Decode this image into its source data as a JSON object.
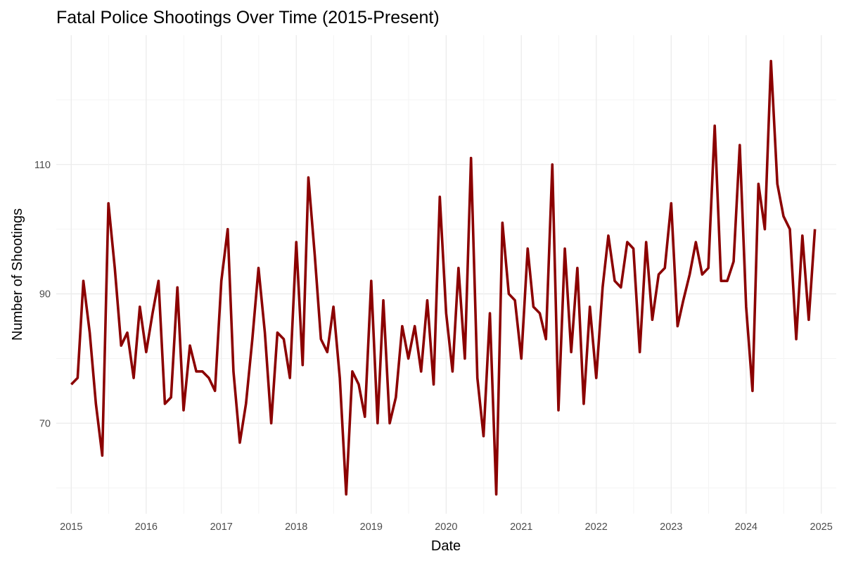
{
  "chart_data": {
    "type": "line",
    "title": "Fatal Police Shootings Over Time (2015-Present)",
    "xlabel": "Date",
    "ylabel": "Number of Shootings",
    "x_tick_labels": [
      "2015",
      "2016",
      "2017",
      "2018",
      "2019",
      "2020",
      "2021",
      "2022",
      "2023",
      "2024",
      "2025"
    ],
    "y_tick_labels": [
      "70",
      "90",
      "110"
    ],
    "ylim": [
      56,
      130
    ],
    "xlim": [
      "2014-10-20",
      "2025-03-15"
    ],
    "grid": true,
    "legend": "none",
    "colors": {
      "series": "#8b0000",
      "grid_major": "#ebebeb",
      "grid_minor": "#f3f3f3"
    },
    "series": [
      {
        "x": [
          "2015-01-01",
          "2015-02-01",
          "2015-03-01",
          "2015-04-01",
          "2015-05-01",
          "2015-06-01",
          "2015-07-01",
          "2015-08-01",
          "2015-09-01",
          "2015-10-01",
          "2015-11-01",
          "2015-12-01",
          "2016-01-01",
          "2016-02-01",
          "2016-03-01",
          "2016-04-01",
          "2016-05-01",
          "2016-06-01",
          "2016-07-01",
          "2016-08-01",
          "2016-09-01",
          "2016-10-01",
          "2016-11-01",
          "2016-12-01",
          "2017-01-01",
          "2017-02-01",
          "2017-03-01",
          "2017-04-01",
          "2017-05-01",
          "2017-06-01",
          "2017-07-01",
          "2017-08-01",
          "2017-09-01",
          "2017-10-01",
          "2017-11-01",
          "2017-12-01",
          "2018-01-01",
          "2018-02-01",
          "2018-03-01",
          "2018-04-01",
          "2018-05-01",
          "2018-06-01",
          "2018-07-01",
          "2018-08-01",
          "2018-09-01",
          "2018-10-01",
          "2018-11-01",
          "2018-12-01",
          "2019-01-01",
          "2019-02-01",
          "2019-03-01",
          "2019-04-01",
          "2019-05-01",
          "2019-06-01",
          "2019-07-01",
          "2019-08-01",
          "2019-09-01",
          "2019-10-01",
          "2019-11-01",
          "2019-12-01",
          "2020-01-01",
          "2020-02-01",
          "2020-03-01",
          "2020-04-01",
          "2020-05-01",
          "2020-06-01",
          "2020-07-01",
          "2020-08-01",
          "2020-09-01",
          "2020-10-01",
          "2020-11-01",
          "2020-12-01",
          "2021-01-01",
          "2021-02-01",
          "2021-03-01",
          "2021-04-01",
          "2021-05-01",
          "2021-06-01",
          "2021-07-01",
          "2021-08-01",
          "2021-09-01",
          "2021-10-01",
          "2021-11-01",
          "2021-12-01",
          "2022-01-01",
          "2022-02-01",
          "2022-03-01",
          "2022-04-01",
          "2022-05-01",
          "2022-06-01",
          "2022-07-01",
          "2022-08-01",
          "2022-09-01",
          "2022-10-01",
          "2022-11-01",
          "2022-12-01",
          "2023-01-01",
          "2023-02-01",
          "2023-03-01",
          "2023-04-01",
          "2023-05-01",
          "2023-06-01",
          "2023-07-01",
          "2023-08-01",
          "2023-09-01",
          "2023-10-01",
          "2023-11-01",
          "2023-12-01",
          "2024-01-01",
          "2024-02-01",
          "2024-03-01",
          "2024-04-01",
          "2024-05-01",
          "2024-06-01",
          "2024-07-01",
          "2024-08-01",
          "2024-09-01",
          "2024-10-01",
          "2024-11-01",
          "2024-12-01"
        ],
        "values": [
          76,
          77,
          92,
          84,
          73,
          65,
          104,
          94,
          82,
          84,
          77,
          88,
          81,
          87,
          92,
          73,
          74,
          91,
          72,
          82,
          78,
          78,
          77,
          75,
          92,
          100,
          78,
          67,
          73,
          83,
          94,
          84,
          70,
          84,
          83,
          77,
          98,
          79,
          108,
          96,
          83,
          81,
          88,
          77,
          59,
          78,
          76,
          71,
          92,
          70,
          89,
          70,
          74,
          85,
          80,
          85,
          78,
          89,
          76,
          105,
          87,
          78,
          94,
          80,
          111,
          77,
          68,
          87,
          59,
          101,
          90,
          89,
          80,
          97,
          88,
          87,
          83,
          110,
          72,
          97,
          81,
          94,
          73,
          88,
          77,
          91,
          99,
          92,
          91,
          98,
          97,
          81,
          98,
          86,
          93,
          94,
          104,
          85,
          89,
          93,
          98,
          93,
          94,
          116,
          92,
          92,
          95,
          113,
          88,
          75,
          107,
          100,
          126,
          107,
          102,
          100,
          83,
          99,
          86,
          100
        ]
      }
    ]
  }
}
